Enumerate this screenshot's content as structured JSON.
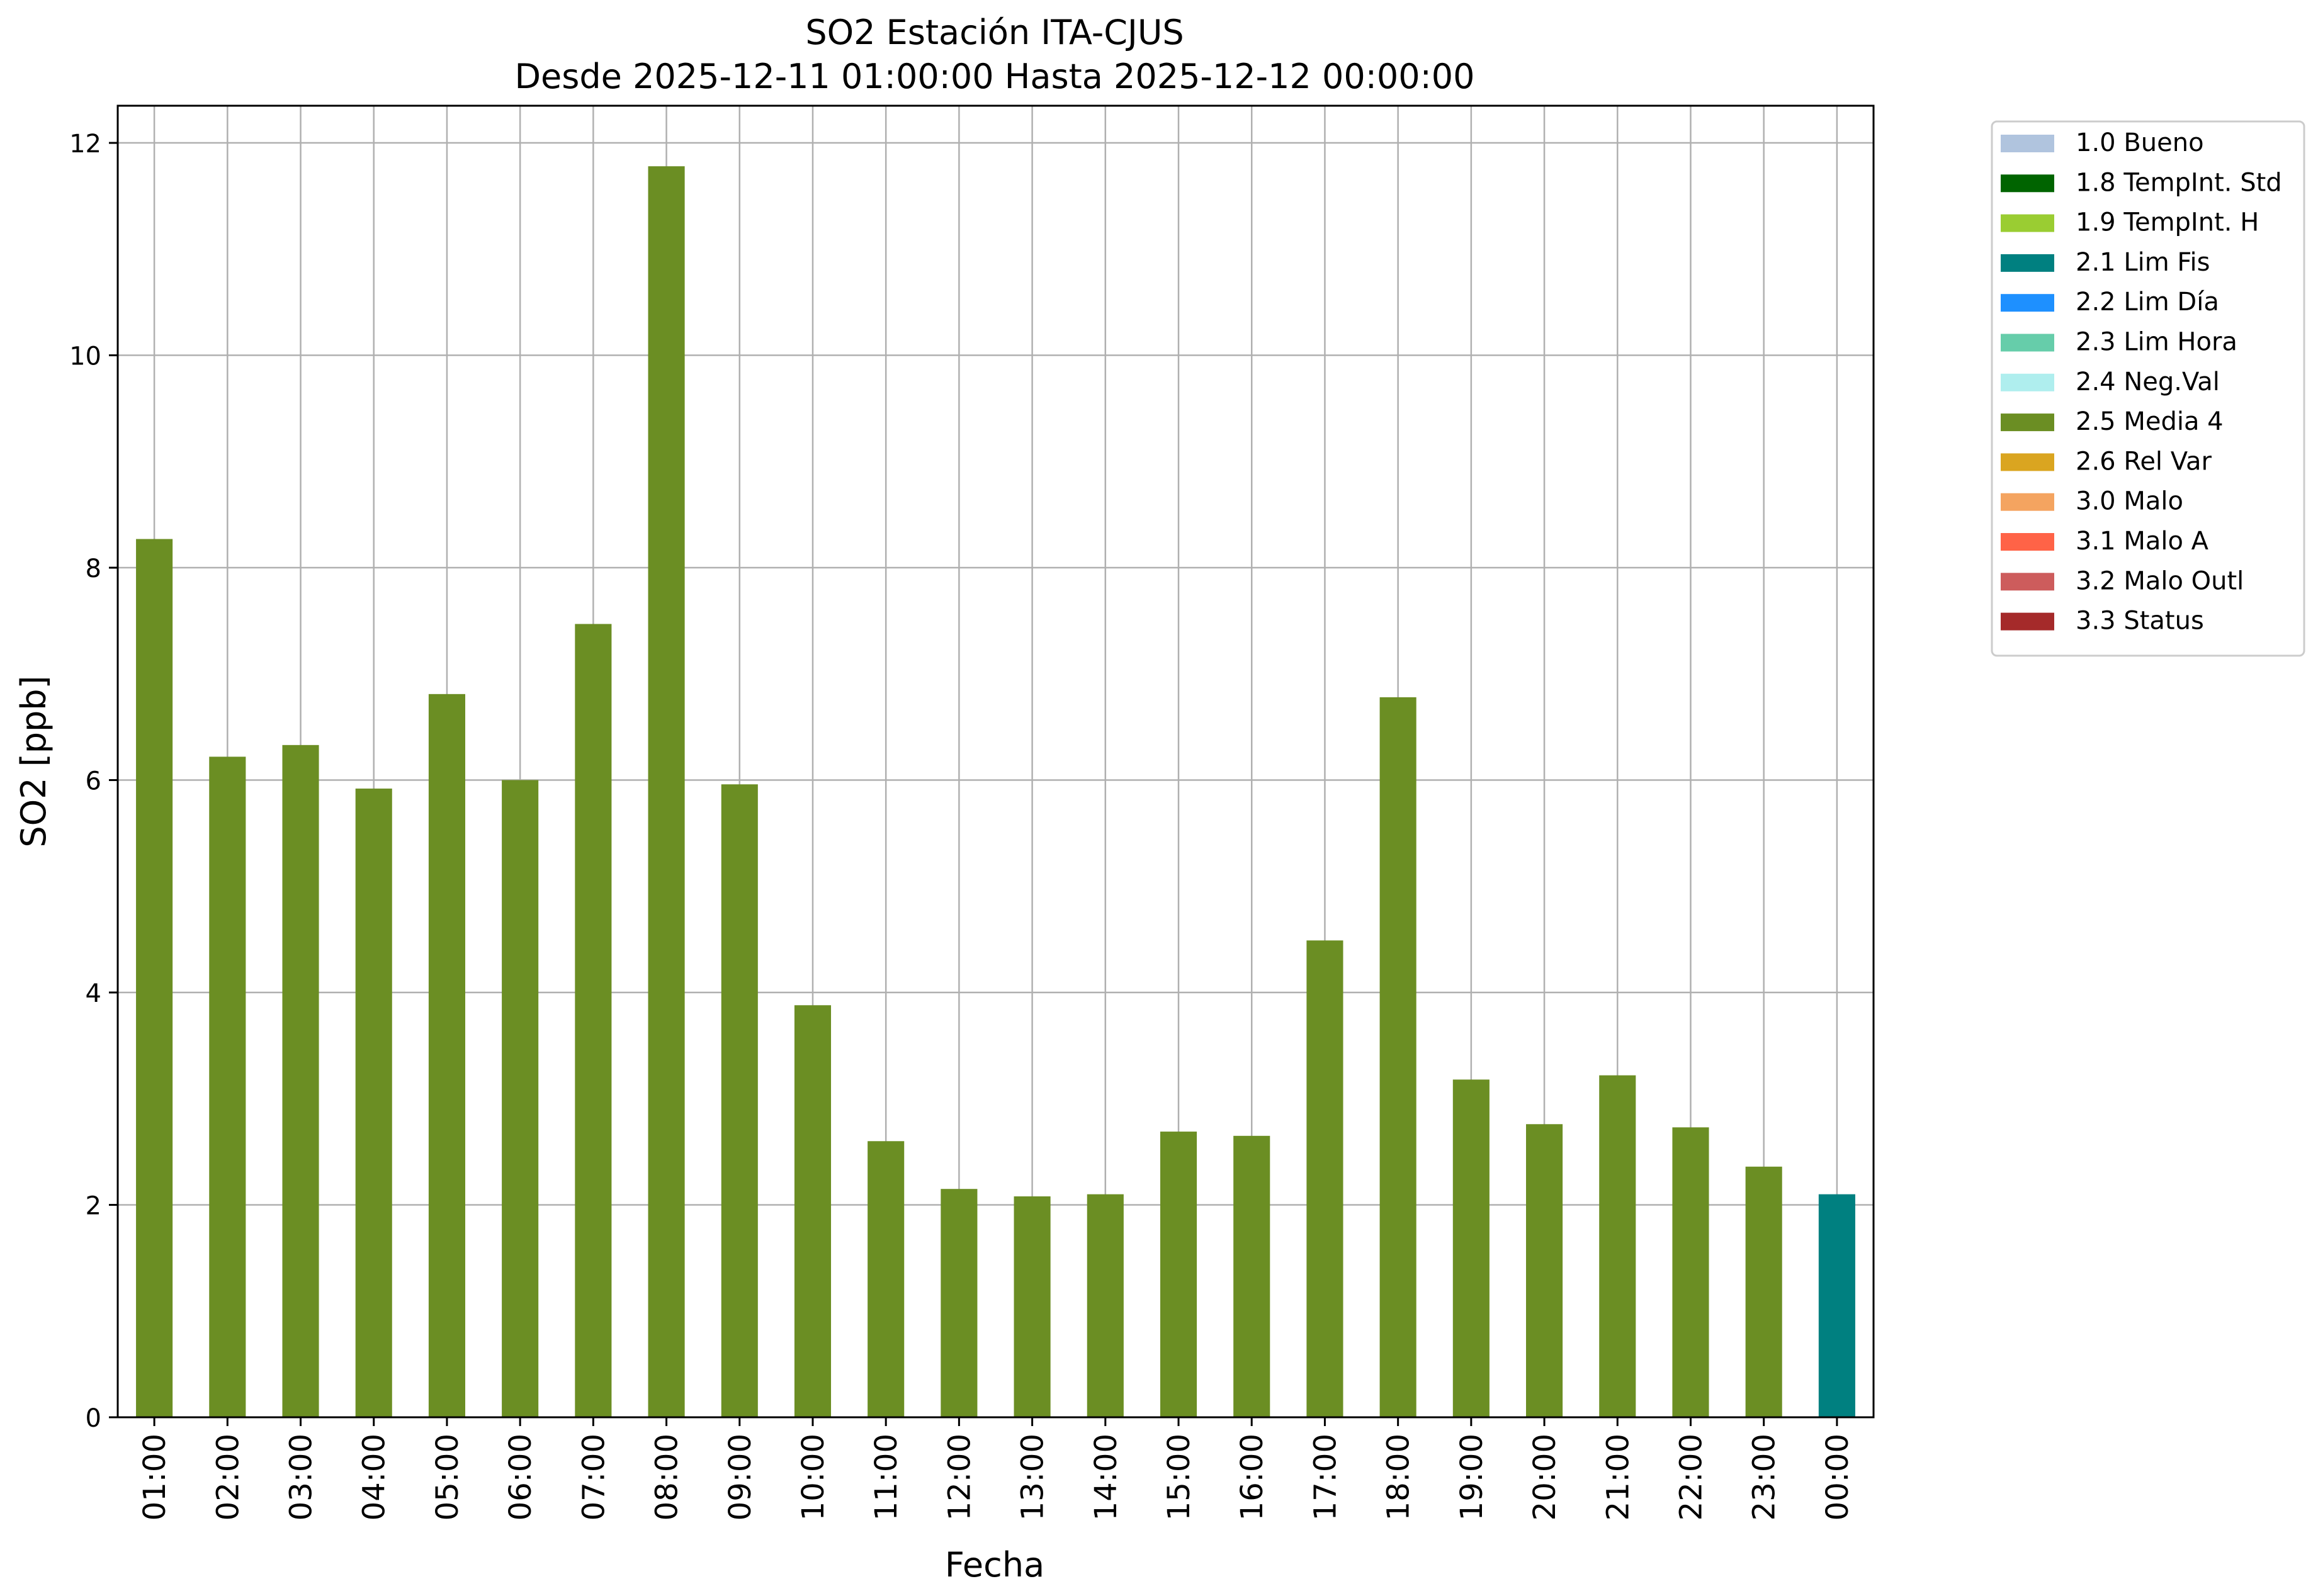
{
  "chart_data": {
    "type": "bar",
    "title": "SO2 Estación ITA-CJUS",
    "subtitle": "Desde 2025-12-11 01:00:00 Hasta 2025-12-12 00:00:00",
    "xlabel": "Fecha",
    "ylabel": "SO2 [ppb]",
    "ylim": [
      0,
      12.35
    ],
    "yticks": [
      0,
      2,
      4,
      6,
      8,
      10,
      12
    ],
    "grid": true,
    "legend_position": "outside-top-right",
    "categories": [
      "01:00",
      "02:00",
      "03:00",
      "04:00",
      "05:00",
      "06:00",
      "07:00",
      "08:00",
      "09:00",
      "10:00",
      "11:00",
      "12:00",
      "13:00",
      "14:00",
      "15:00",
      "16:00",
      "17:00",
      "18:00",
      "19:00",
      "20:00",
      "21:00",
      "22:00",
      "23:00",
      "00:00"
    ],
    "values": [
      8.27,
      6.22,
      6.33,
      5.92,
      6.81,
      6.0,
      7.47,
      11.78,
      5.96,
      3.88,
      2.6,
      2.15,
      2.08,
      2.1,
      2.69,
      2.65,
      4.49,
      6.78,
      3.18,
      2.76,
      3.22,
      2.73,
      2.36,
      2.1
    ],
    "flags": [
      "2.5 Media 4",
      "2.5 Media 4",
      "2.5 Media 4",
      "2.5 Media 4",
      "2.5 Media 4",
      "2.5 Media 4",
      "2.5 Media 4",
      "2.5 Media 4",
      "2.5 Media 4",
      "2.5 Media 4",
      "2.5 Media 4",
      "2.5 Media 4",
      "2.5 Media 4",
      "2.5 Media 4",
      "2.5 Media 4",
      "2.5 Media 4",
      "2.5 Media 4",
      "2.5 Media 4",
      "2.5 Media 4",
      "2.5 Media 4",
      "2.5 Media 4",
      "2.5 Media 4",
      "2.5 Media 4",
      "2.1 Lim Fis"
    ],
    "legend": [
      {
        "label": "1.0 Bueno",
        "color": "#b0c4de"
      },
      {
        "label": "1.8 TempInt. Std",
        "color": "#006400"
      },
      {
        "label": "1.9 TempInt. H",
        "color": "#9acd32"
      },
      {
        "label": "2.1 Lim Fis",
        "color": "#008080"
      },
      {
        "label": "2.2 Lim Día",
        "color": "#1e90ff"
      },
      {
        "label": "2.3 Lim Hora",
        "color": "#66cdaa"
      },
      {
        "label": "2.4 Neg.Val",
        "color": "#afeeee"
      },
      {
        "label": "2.5 Media 4",
        "color": "#6b8e23"
      },
      {
        "label": "2.6 Rel Var",
        "color": "#daa520"
      },
      {
        "label": "3.0 Malo",
        "color": "#f4a460"
      },
      {
        "label": "3.1 Malo A",
        "color": "#ff6347"
      },
      {
        "label": "3.2 Malo Outl",
        "color": "#cd5c5c"
      },
      {
        "label": "3.3 Status",
        "color": "#a52a2a"
      }
    ]
  }
}
